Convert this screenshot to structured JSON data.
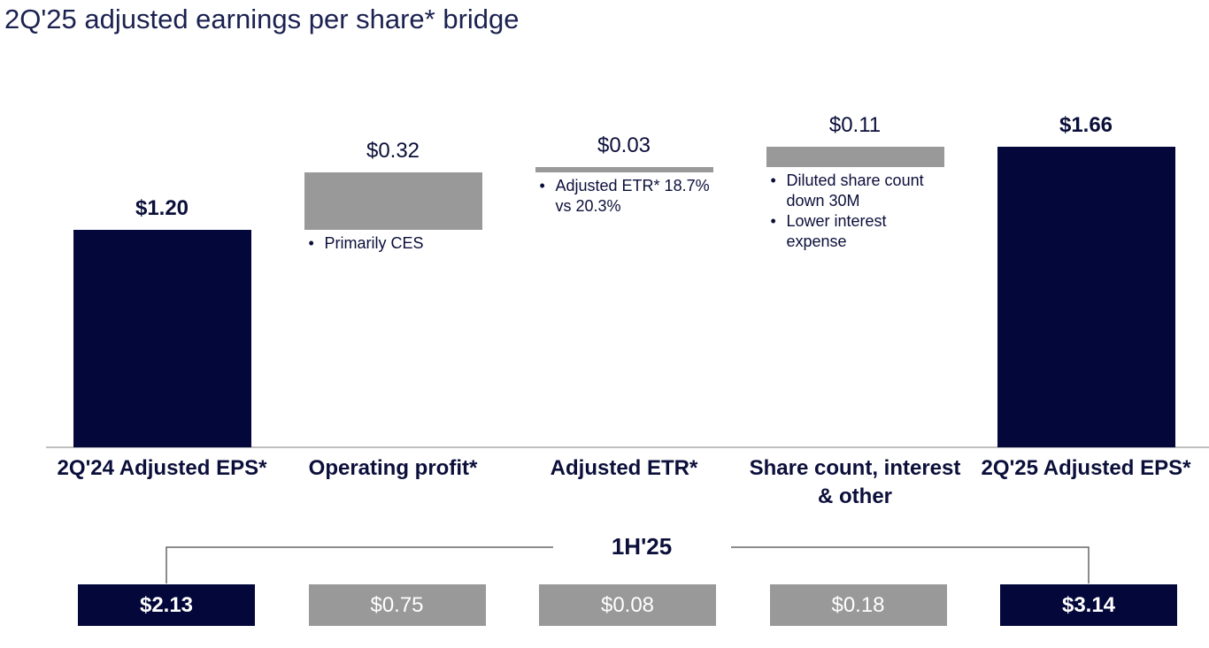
{
  "chart_data": {
    "type": "waterfall",
    "title": "2Q'25 adjusted earnings per share* bridge",
    "categories": [
      "2Q'24 Adjusted EPS*",
      "Operating profit*",
      "Adjusted ETR*",
      "Share count, interest & other",
      "2Q'25 Adjusted EPS*"
    ],
    "values": [
      1.2,
      0.32,
      0.03,
      0.11,
      1.66
    ],
    "value_labels": [
      "$1.20",
      "$0.32",
      "$0.03",
      "$0.11",
      "$1.66"
    ],
    "colors": [
      "#03073a",
      "#999999",
      "#999999",
      "#999999",
      "#03073a"
    ],
    "notes": [
      [],
      [
        "Primarily CES"
      ],
      [
        "Adjusted ETR* 18.7% vs 20.3%"
      ],
      [
        "Diluted share count down 30M",
        "Lower interest expense"
      ],
      []
    ],
    "summary": {
      "title": "1H'25",
      "values": [
        2.13,
        0.75,
        0.08,
        0.18,
        3.14
      ],
      "value_labels": [
        "$2.13",
        "$0.75",
        "$0.08",
        "$0.18",
        "$3.14"
      ]
    }
  }
}
